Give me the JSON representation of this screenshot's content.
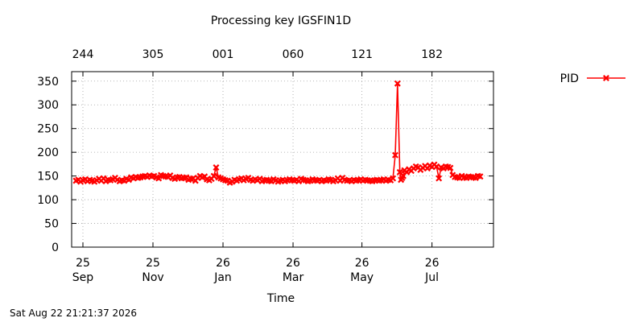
{
  "chart_data": {
    "type": "line",
    "title": "Processing key IGSFIN1D",
    "xlabel": "Time",
    "ylabel": "",
    "ylim": [
      0,
      370
    ],
    "xlim": [
      0,
      352
    ],
    "yticks": [
      0,
      50,
      100,
      150,
      200,
      250,
      300,
      350
    ],
    "xticks_bottom": [
      {
        "x": 0,
        "day": "25",
        "month": "Sep"
      },
      {
        "x": 61,
        "day": "25",
        "month": "Nov"
      },
      {
        "x": 122,
        "day": "26",
        "month": "Jan"
      },
      {
        "x": 183,
        "day": "26",
        "month": "Mar"
      },
      {
        "x": 243,
        "day": "26",
        "month": "May"
      },
      {
        "x": 304,
        "day": "26",
        "month": "Jul"
      }
    ],
    "xticks_top": [
      {
        "x": 0,
        "label": "244"
      },
      {
        "x": 61,
        "label": "305"
      },
      {
        "x": 122,
        "label": "001"
      },
      {
        "x": 183,
        "label": "060"
      },
      {
        "x": 243,
        "label": "121"
      },
      {
        "x": 304,
        "label": "182"
      }
    ],
    "grid": true,
    "legend": "top-right",
    "series": [
      {
        "name": "PID",
        "color": "#ff0000",
        "marker": "x",
        "x": [
          -6,
          -4,
          -2,
          0,
          2,
          4,
          6,
          8,
          10,
          12,
          14,
          16,
          18,
          20,
          22,
          24,
          26,
          28,
          30,
          32,
          34,
          36,
          38,
          40,
          42,
          44,
          46,
          48,
          50,
          52,
          54,
          56,
          58,
          60,
          62,
          64,
          66,
          68,
          70,
          72,
          74,
          76,
          78,
          80,
          82,
          84,
          86,
          88,
          90,
          92,
          94,
          96,
          98,
          100,
          102,
          104,
          106,
          108,
          110,
          112,
          114,
          116,
          118,
          120,
          122,
          124,
          126,
          128,
          130,
          132,
          134,
          136,
          138,
          140,
          142,
          144,
          146,
          148,
          150,
          152,
          154,
          156,
          158,
          160,
          162,
          164,
          166,
          168,
          170,
          172,
          174,
          176,
          178,
          180,
          182,
          184,
          186,
          188,
          190,
          192,
          194,
          196,
          198,
          200,
          202,
          204,
          206,
          208,
          210,
          212,
          214,
          216,
          218,
          220,
          222,
          224,
          226,
          228,
          230,
          232,
          234,
          236,
          238,
          240,
          242,
          244,
          246,
          248,
          250,
          252,
          254,
          256,
          258,
          260,
          262,
          264,
          266,
          268,
          270,
          272,
          274,
          276,
          277,
          278,
          279,
          280,
          282,
          284,
          286,
          288,
          290,
          292,
          294,
          296,
          298,
          300,
          302,
          304,
          306,
          308,
          310,
          312,
          314,
          316,
          318,
          320,
          322,
          324,
          326,
          328,
          330,
          332,
          334,
          336,
          338,
          340,
          342,
          344,
          346
        ],
        "y": [
          140,
          142,
          138,
          141,
          143,
          139,
          142,
          140,
          138,
          141,
          144,
          140,
          145,
          139,
          142,
          141,
          143,
          146,
          142,
          139,
          141,
          140,
          144,
          142,
          147,
          145,
          148,
          146,
          147,
          149,
          150,
          148,
          151,
          149,
          150,
          147,
          145,
          152,
          150,
          149,
          148,
          151,
          146,
          144,
          147,
          148,
          145,
          146,
          147,
          142,
          144,
          145,
          140,
          146,
          150,
          147,
          149,
          143,
          141,
          144,
          150,
          168,
          147,
          145,
          143,
          141,
          140,
          136,
          138,
          142,
          140,
          143,
          145,
          141,
          144,
          146,
          142,
          140,
          143,
          141,
          144,
          139,
          141,
          142,
          140,
          139,
          143,
          141,
          138,
          140,
          142,
          139,
          141,
          143,
          141,
          140,
          142,
          139,
          144,
          142,
          141,
          139,
          140,
          143,
          141,
          140,
          142,
          139,
          141,
          140,
          143,
          142,
          139,
          141,
          145,
          140,
          146,
          142,
          140,
          141,
          139,
          142,
          140,
          141,
          143,
          140,
          142,
          141,
          140,
          139,
          141,
          142,
          140,
          141,
          143,
          140,
          142,
          141,
          145,
          194,
          345,
          158,
          142,
          146,
          150,
          162,
          158,
          164,
          161,
          166,
          170,
          168,
          163,
          167,
          171,
          166,
          172,
          169,
          174,
          170,
          145,
          168,
          166,
          170,
          169,
          167,
          152,
          148,
          147,
          146,
          150,
          147,
          146,
          149,
          148,
          147,
          146,
          150,
          149
        ]
      }
    ],
    "legend_entries": [
      {
        "label": "PID",
        "color": "#ff0000",
        "marker": "x"
      }
    ]
  },
  "footer": {
    "timestamp": "Sat Aug 22 21:21:37 2026"
  }
}
